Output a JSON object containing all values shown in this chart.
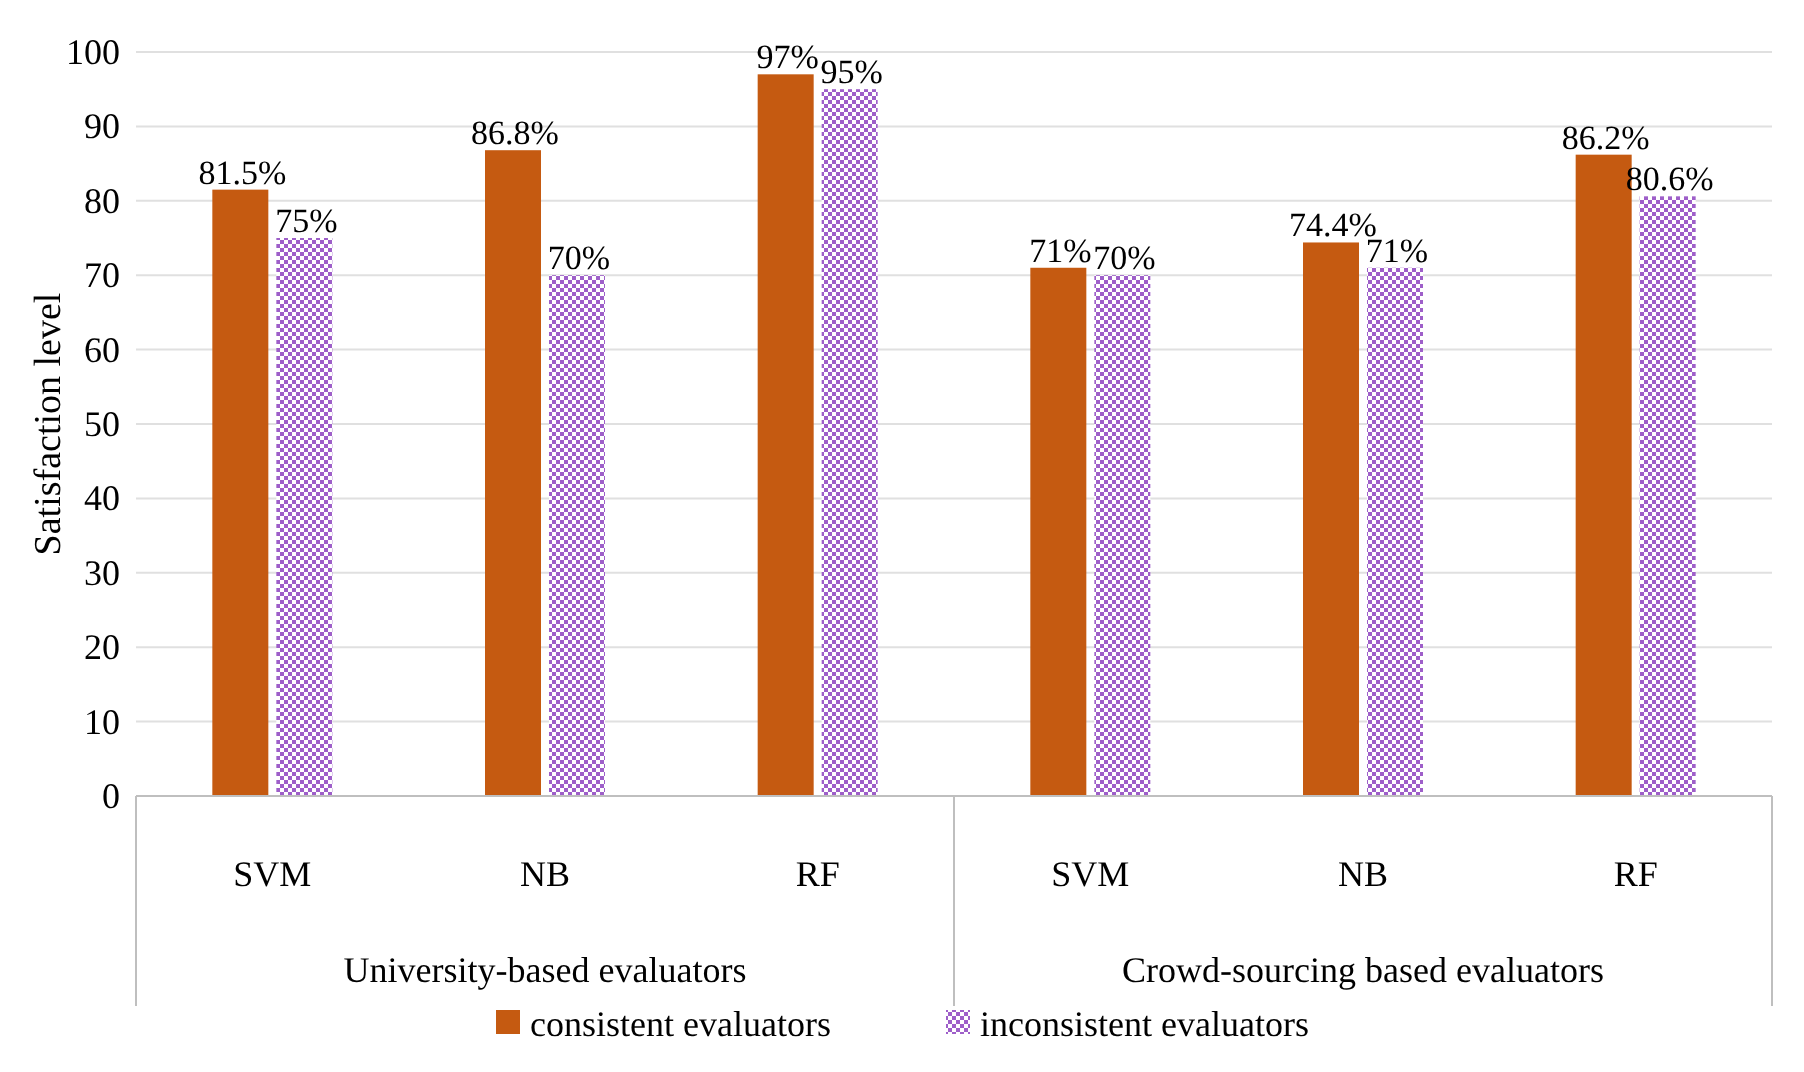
{
  "chart_data": {
    "type": "bar",
    "ylabel": "Satisfaction level",
    "categories": [
      "SVM",
      "NB",
      "RF",
      "SVM",
      "NB",
      "RF"
    ],
    "series": [
      {
        "name": "consistent evaluators",
        "color": "#c55a11",
        "values": [
          81.5,
          86.8,
          97,
          71,
          74.4,
          86.2
        ],
        "value_labels": [
          "81.5%",
          "86.8%",
          "97%",
          "71%",
          "74.4%",
          "86.2%"
        ]
      },
      {
        "name": "inconsistent evaluators",
        "color": "#9e5fc9",
        "values": [
          75,
          70,
          95,
          70,
          71,
          80.6
        ],
        "value_labels": [
          "75%",
          "70%",
          "95%",
          "70%",
          "71%",
          "80.6%"
        ]
      }
    ],
    "annotations": [
      "University-based evaluators",
      "Crowd-sourcing based evaluators"
    ],
    "ylim": [
      0,
      100
    ],
    "yticks": [
      0,
      10,
      20,
      30,
      40,
      50,
      60,
      70,
      80,
      90,
      100
    ],
    "grid": "y",
    "legend": "bottom"
  }
}
